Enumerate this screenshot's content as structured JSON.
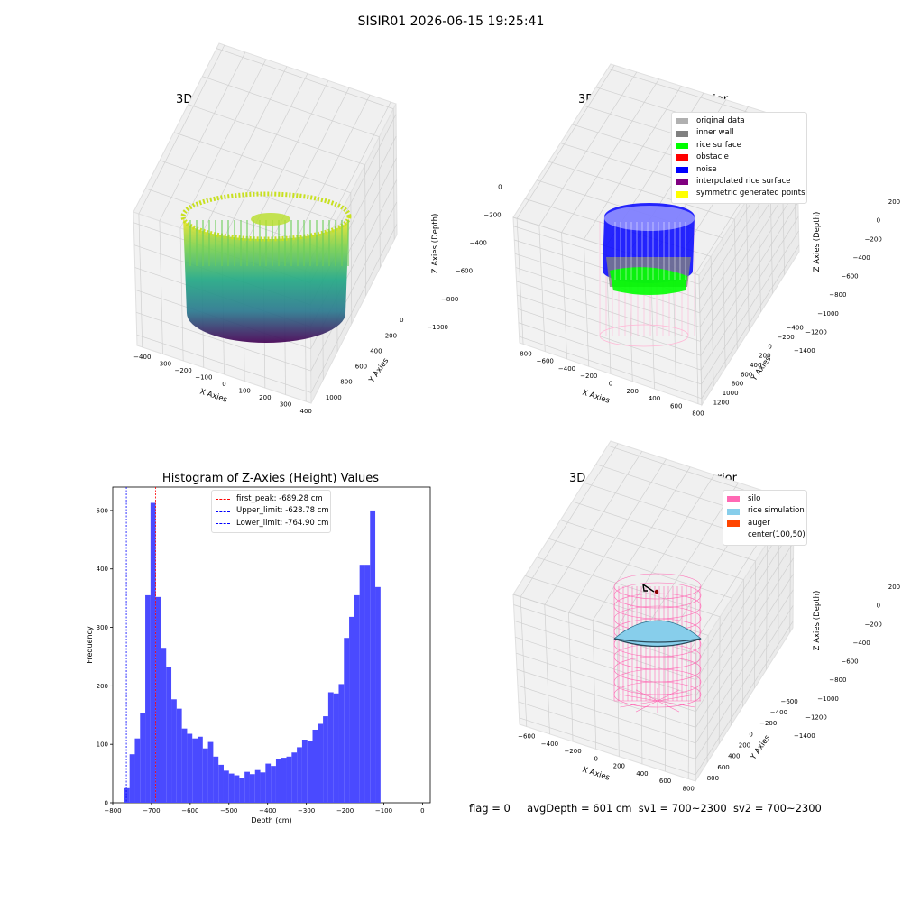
{
  "title": "SISIR01 2026-06-15 19:25:41",
  "status": {
    "flag": "flag = 0",
    "avg_depth": "avgDepth = 601 cm",
    "sv1": "sv1 = 700~2300",
    "sv2": "sv2 = 700~2300"
  },
  "chart_data": [
    {
      "type": "scatter",
      "title": "3D Plot of Silo Interior(row data)",
      "xlabel": "X Axies",
      "ylabel": "Y Axies",
      "zlabel": "Z Axies (Depth)",
      "x_ticks": [
        "−400",
        "−300",
        "−200",
        "−100",
        "0",
        "100",
        "200",
        "300",
        "400"
      ],
      "y_ticks": [
        "0",
        "200",
        "400",
        "600",
        "800",
        "1000"
      ],
      "z_ticks": [
        "0",
        "−200",
        "−400",
        "−600",
        "−800",
        "−1000"
      ],
      "xlim": [
        -400,
        400
      ],
      "ylim": [
        0,
        1000
      ],
      "zlim": [
        -1000,
        0
      ],
      "colormap": "viridis"
    },
    {
      "type": "scatter",
      "title": "3D classify of Silo Interior",
      "xlabel": "X Axies",
      "ylabel": "Y Axies",
      "zlabel": "Z Axies (Depth)",
      "x_ticks": [
        "−800",
        "−600",
        "−400",
        "−200",
        "0",
        "200",
        "400",
        "600",
        "800"
      ],
      "y_ticks": [
        "−400",
        "−200",
        "0",
        "200",
        "400",
        "600",
        "800",
        "1000",
        "1200"
      ],
      "z_ticks": [
        "200",
        "0",
        "−200",
        "−400",
        "−600",
        "−800",
        "−1000",
        "−1200",
        "−1400"
      ],
      "legend": [
        {
          "label": "original data",
          "color": "#b0b0b0"
        },
        {
          "label": "inner wall",
          "color": "#808080"
        },
        {
          "label": "rice surface",
          "color": "#00ff00"
        },
        {
          "label": "obstacle",
          "color": "#ff0000"
        },
        {
          "label": "noise",
          "color": "#0000ff"
        },
        {
          "label": "interpolated rice surface",
          "color": "#800080"
        },
        {
          "label": "symmetric generated points",
          "color": "#ffff00"
        }
      ]
    },
    {
      "type": "bar",
      "title": "Histogram of Z-Axies (Height) Values",
      "xlabel": "Depth (cm)",
      "ylabel": "Frequency",
      "xlim": [
        -800,
        20
      ],
      "ylim": [
        0,
        540
      ],
      "x_ticks": [
        "−800",
        "−700",
        "−600",
        "−500",
        "−400",
        "−300",
        "−200",
        "−100",
        "0"
      ],
      "y_ticks": [
        "0",
        "100",
        "200",
        "300",
        "400",
        "500"
      ],
      "bar_color": "#4a4aff",
      "bin_width": 13.5,
      "bin_start": -770,
      "values": [
        25,
        83,
        110,
        153,
        355,
        513,
        352,
        265,
        232,
        177,
        161,
        127,
        118,
        110,
        113,
        93,
        104,
        79,
        65,
        55,
        50,
        47,
        42,
        53,
        49,
        56,
        52,
        67,
        63,
        75,
        77,
        79,
        86,
        95,
        108,
        106,
        125,
        135,
        148,
        189,
        187,
        203,
        282,
        318,
        355,
        407,
        407,
        500,
        369
      ],
      "vlines": [
        {
          "label": "first_peak: -689.28 cm",
          "x": -689.28,
          "color": "#ff0000"
        },
        {
          "label": "Upper_limit: -628.78 cm",
          "x": -628.78,
          "color": "#0000ff"
        },
        {
          "label": "Lower_limit: -764.90 cm",
          "x": -764.9,
          "color": "#0000ff"
        }
      ]
    },
    {
      "type": "scatter",
      "title": "3D simulation of Silo Interior",
      "xlabel": "X Axies",
      "ylabel": "Y Axies",
      "zlabel": "Z Axies (Depth)",
      "x_ticks": [
        "−600",
        "−400",
        "−200",
        "0",
        "200",
        "400",
        "600",
        "800"
      ],
      "y_ticks": [
        "−600",
        "−400",
        "−200",
        "0",
        "200",
        "400",
        "600",
        "800"
      ],
      "z_ticks": [
        "200",
        "0",
        "−200",
        "−400",
        "−600",
        "−800",
        "−1000",
        "−1200",
        "−1400"
      ],
      "legend": [
        {
          "label": "silo",
          "color": "#ff69b4"
        },
        {
          "label": "rice simulation",
          "color": "#87ceeb"
        },
        {
          "label": "auger",
          "color": "#ff4500"
        },
        {
          "label": "center(100,50)",
          "color": "#ffffff"
        }
      ]
    }
  ]
}
